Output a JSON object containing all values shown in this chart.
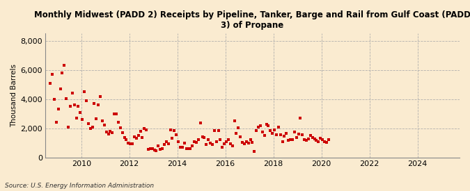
{
  "title": "Monthly Midwest (PADD 2) Receipts by Pipeline, Tanker, Barge and Rail from Gulf Coast (PADD\n3) of Propane",
  "ylabel": "Thousand Barrels",
  "source": "Source: U.S. Energy Information Administration",
  "background_color": "#faebd0",
  "plot_bg_color": "#faebd0",
  "marker_color": "#cc0000",
  "yticks": [
    0,
    2000,
    4000,
    6000,
    8000
  ],
  "ylim": [
    0,
    8500
  ],
  "xlim_start": 2008.5,
  "xlim_end": 2025.75,
  "xticks": [
    2010,
    2012,
    2014,
    2016,
    2018,
    2020,
    2022,
    2024
  ],
  "values": [
    5100,
    5700,
    4000,
    2400,
    3300,
    4700,
    5800,
    6300,
    4050,
    2100,
    3500,
    4400,
    3600,
    2700,
    3500,
    3100,
    2600,
    4500,
    3900,
    2300,
    2000,
    2100,
    3700,
    2650,
    3600,
    4200,
    2500,
    2200,
    1750,
    1600,
    1800,
    1700,
    3000,
    3000,
    2400,
    2050,
    1700,
    1350,
    1200,
    1000,
    950,
    950,
    1400,
    1300,
    1500,
    1800,
    1350,
    2000,
    1900,
    550,
    620,
    620,
    510,
    450,
    800,
    560,
    600,
    900,
    1100,
    950,
    1900,
    1300,
    1850,
    1550,
    1100,
    700,
    700,
    1000,
    620,
    600,
    620,
    780,
    1100,
    1050,
    1200,
    2350,
    1400,
    1350,
    900,
    1200,
    1000,
    900,
    1850,
    1100,
    1850,
    1200,
    700,
    920,
    1100,
    1200,
    950,
    780,
    2500,
    1650,
    2050,
    1400,
    1050,
    950,
    1100,
    1000,
    1200,
    1050,
    400,
    1850,
    2100,
    2150,
    1750,
    1500,
    2250,
    2150,
    1850,
    1650,
    1900,
    1550,
    2100,
    1550,
    1100,
    1450,
    1650,
    1150,
    1200,
    1200,
    1750,
    1350,
    1600,
    2700,
    1550,
    1200,
    1150,
    1250,
    1500,
    1350,
    1250,
    1150,
    1100,
    1300,
    1200,
    1100,
    1050,
    1200
  ],
  "start_year": 2008,
  "start_month": 9
}
